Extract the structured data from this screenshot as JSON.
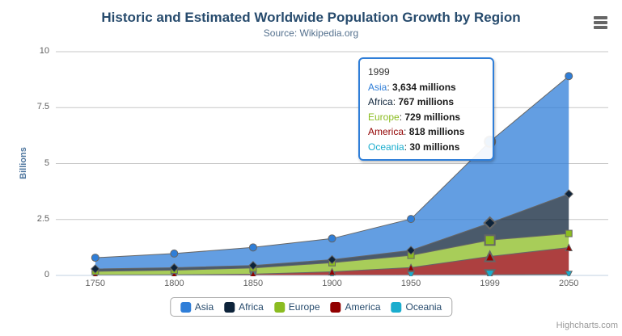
{
  "chart_data": {
    "type": "area",
    "stacking": "normal",
    "title": "Historic and Estimated Worldwide Population Growth by Region",
    "subtitle": "Source: Wikipedia.org",
    "xlabel": "",
    "ylabel": "Billions",
    "ylim": [
      0,
      10
    ],
    "yticks": [
      0,
      2.5,
      5,
      7.5,
      10
    ],
    "ytick_labels": [
      "0",
      "2.5",
      "5",
      "7.5",
      "10"
    ],
    "categories": [
      "1750",
      "1800",
      "1850",
      "1900",
      "1950",
      "1999",
      "2050"
    ],
    "values_unit": "millions",
    "grid": true,
    "legend_position": "bottom",
    "line_color": "#666666",
    "fill_opacity": 0.75,
    "series": [
      {
        "name": "Asia",
        "color": "#2f7ed8",
        "marker": "circle",
        "values": [
          502,
          635,
          809,
          947,
          1402,
          3634,
          5268
        ]
      },
      {
        "name": "Africa",
        "color": "#0d233a",
        "marker": "diamond",
        "values": [
          106,
          107,
          111,
          133,
          221,
          767,
          1766
        ]
      },
      {
        "name": "Europe",
        "color": "#8bbc21",
        "marker": "square",
        "values": [
          163,
          203,
          276,
          408,
          547,
          729,
          628
        ]
      },
      {
        "name": "America",
        "color": "#910000",
        "marker": "triangle",
        "values": [
          18,
          31,
          54,
          156,
          339,
          818,
          1201
        ]
      },
      {
        "name": "Oceania",
        "color": "#1aadce",
        "marker": "triangle-down",
        "values": [
          2,
          2,
          2,
          6,
          13,
          30,
          46
        ]
      }
    ]
  },
  "tooltip": {
    "header": "1999",
    "x_index": 5,
    "border_color": "#2f7ed8",
    "rows": [
      {
        "series": "Asia",
        "value": "3,634 millions"
      },
      {
        "series": "Africa",
        "value": "767 millions"
      },
      {
        "series": "Europe",
        "value": "729 millions"
      },
      {
        "series": "America",
        "value": "818 millions"
      },
      {
        "series": "Oceania",
        "value": "30 millions"
      }
    ]
  },
  "credits": "Highcharts.com"
}
